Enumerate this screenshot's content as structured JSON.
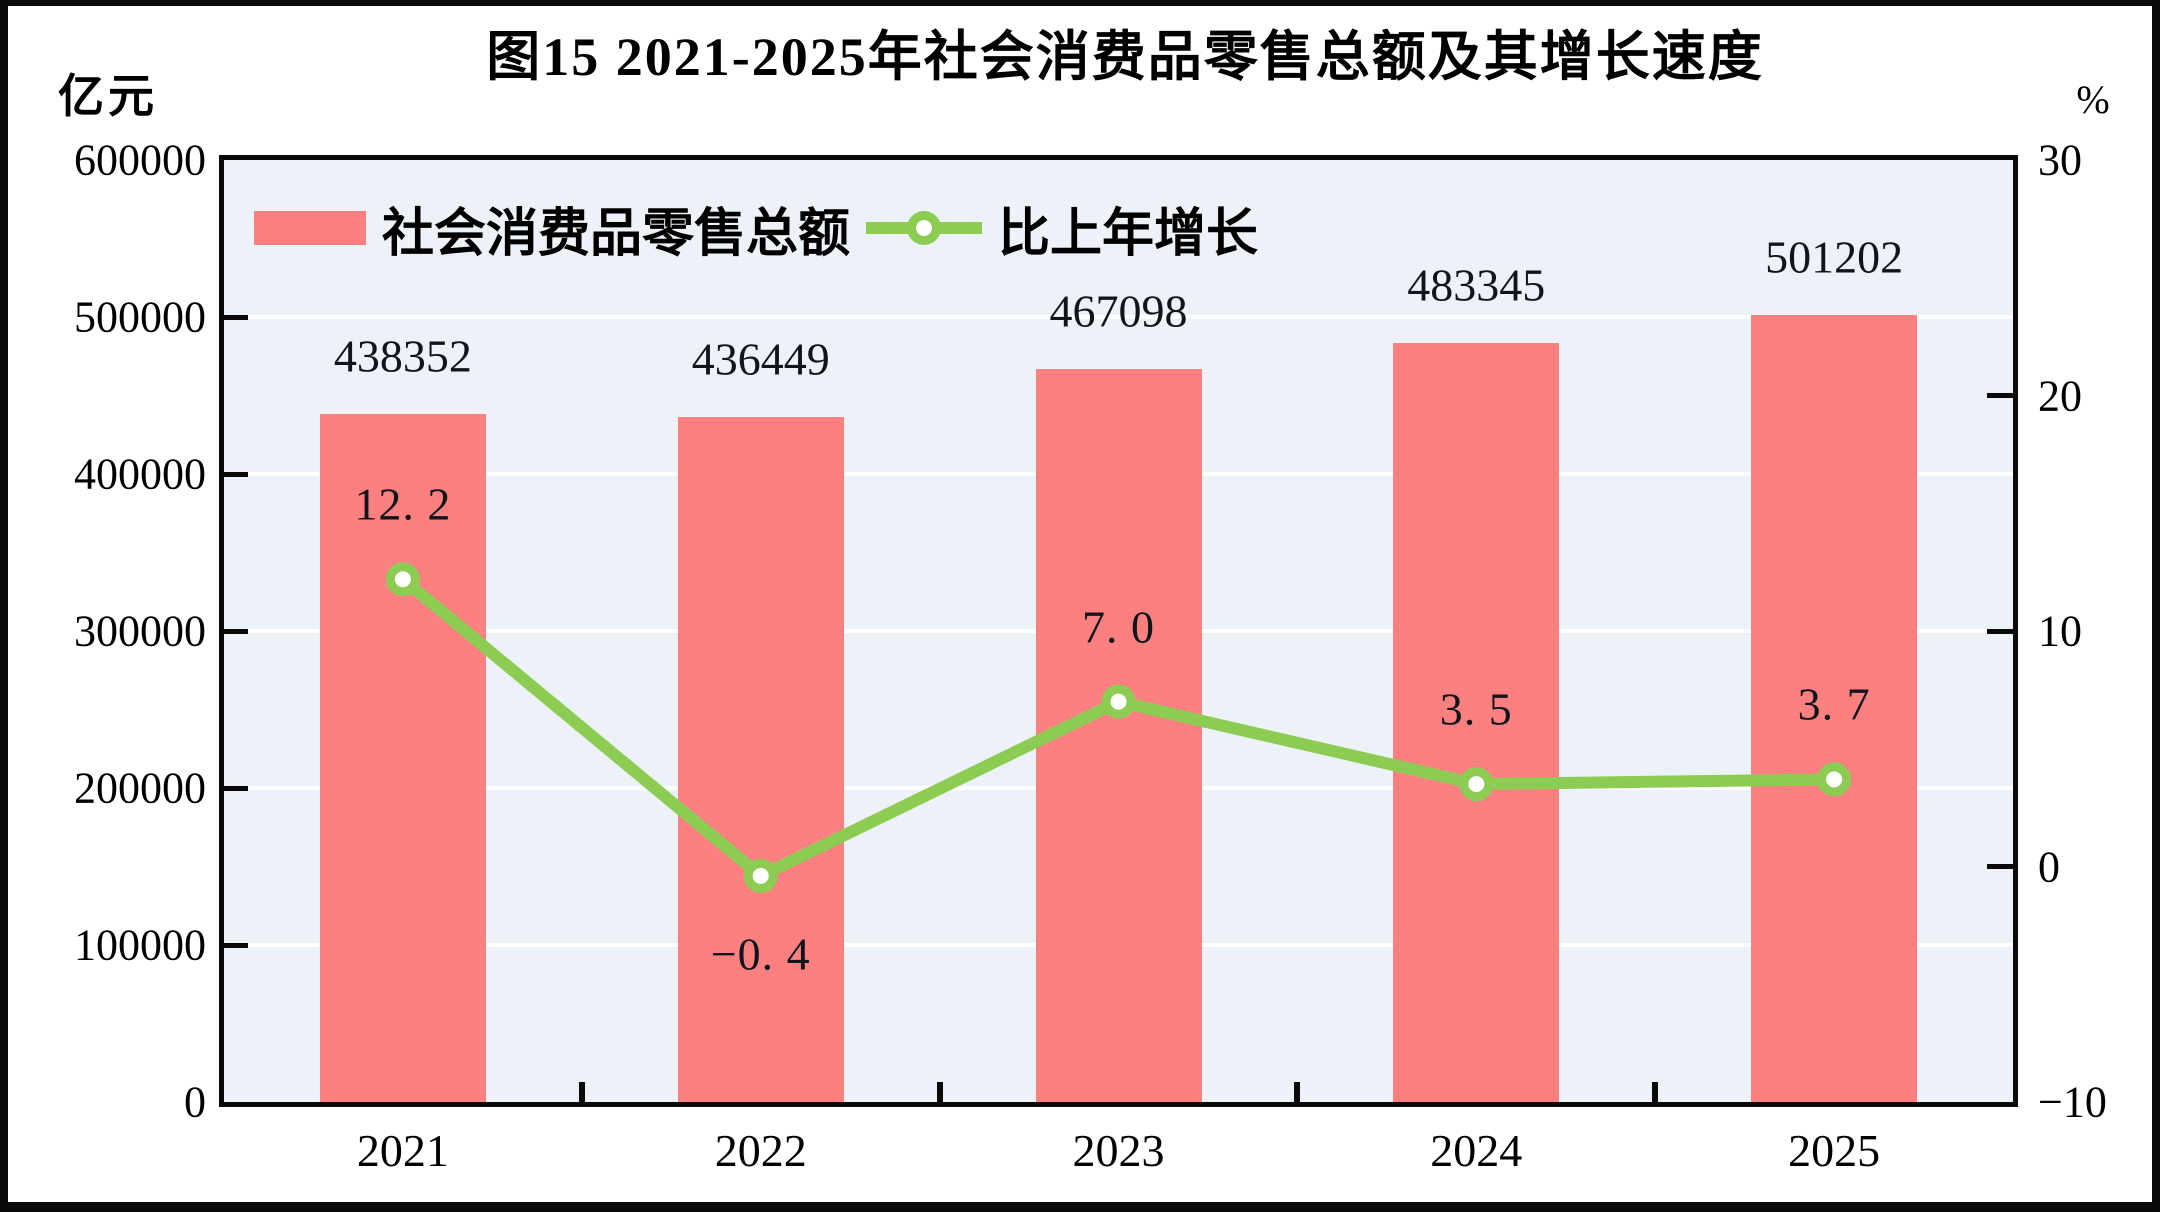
{
  "title": "图15  2021-2025年社会消费品零售总额及其增长速度",
  "chart_data": {
    "type": "combo",
    "categories": [
      "2021",
      "2022",
      "2023",
      "2024",
      "2025"
    ],
    "series": [
      {
        "name": "社会消费品零售总额",
        "type": "bar",
        "axis": "left",
        "unit": "亿元",
        "values": [
          438352,
          436449,
          467098,
          483345,
          501202
        ],
        "color": "#FC8080"
      },
      {
        "name": "比上年增长",
        "type": "line",
        "axis": "right",
        "unit": "%",
        "values": [
          12.2,
          -0.4,
          7.0,
          3.5,
          3.7
        ],
        "color": "#8DCC52",
        "marker": "circle-white-fill-green-ring"
      }
    ],
    "left_axis": {
      "label": "亿元",
      "range": [
        0,
        600000
      ],
      "tick_labels": [
        "600000",
        "500000",
        "400000",
        "300000",
        "200000",
        "100000",
        "0"
      ]
    },
    "right_axis": {
      "label": "%",
      "range": [
        -10,
        30
      ],
      "tick_labels": [
        "30",
        "20",
        "10",
        "0",
        "−10"
      ],
      "inner_tick_values": [
        20,
        10,
        0
      ]
    },
    "data_labels": {
      "bar": [
        "438352",
        "436449",
        "467098",
        "483345",
        "501202"
      ],
      "line": [
        "12. 2",
        "−0. 4",
        "7. 0",
        "3. 5",
        "3. 7"
      ],
      "line_label_side": [
        "above",
        "below",
        "above",
        "above",
        "above"
      ]
    },
    "grid": "horizontal-white-lines-every-100000",
    "legend_position": "top-left-inside-plot",
    "plot_background": "#ECF2F7",
    "grid_color": "#FFFFFF",
    "axis_color": "#0A0A0A"
  }
}
